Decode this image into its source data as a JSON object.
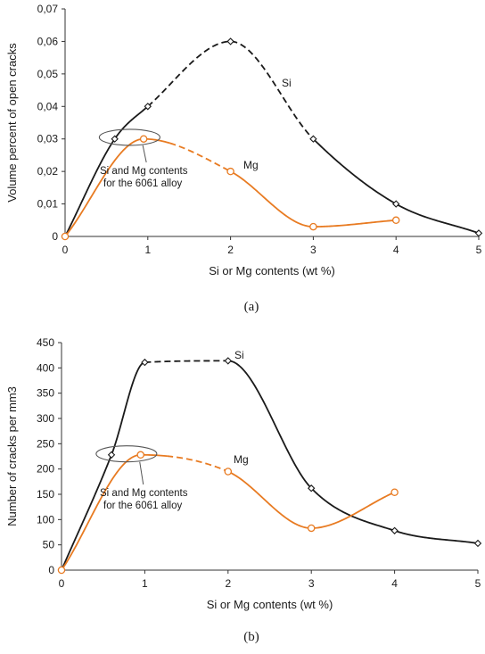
{
  "colors": {
    "si": "#1a1a1a",
    "mg": "#e87b22",
    "axis": "#333333",
    "ellipse": "#555555"
  },
  "chart_data": [
    {
      "type": "line",
      "caption": "(a)",
      "xlabel": "Si or Mg contents (wt %)",
      "ylabel": "Volume percent of open cracks",
      "xlim": [
        0,
        5
      ],
      "ylim": [
        0,
        0.07
      ],
      "x_ticks": [
        "0",
        "1",
        "2",
        "3",
        "4",
        "5"
      ],
      "y_ticks": [
        "0",
        "0,01",
        "0,02",
        "0,03",
        "0,04",
        "0,05",
        "0,06",
        "0,07"
      ],
      "grid": false,
      "series": [
        {
          "name": "Si",
          "marker": "diamond",
          "x": [
            0,
            0.6,
            1,
            2,
            3,
            4,
            5
          ],
          "y": [
            0,
            0.03,
            0.04,
            0.06,
            0.03,
            0.01,
            0.001
          ],
          "dashed_segments": [
            [
              1,
              3
            ]
          ]
        },
        {
          "name": "Mg",
          "marker": "circle",
          "x": [
            0,
            0.95,
            2,
            3,
            4
          ],
          "y": [
            0,
            0.03,
            0.02,
            0.003,
            0.005
          ],
          "dashed_segments": [
            [
              1.25,
              1.95
            ]
          ]
        }
      ],
      "annotation": {
        "line1": "Si and Mg contents",
        "line2": "for the 6061 alloy",
        "ellipse_center": [
          0.78,
          0.0305
        ]
      }
    },
    {
      "type": "line",
      "caption": "(b)",
      "xlabel": "Si or Mg contents (wt %)",
      "ylabel": "Number of cracks per mm3",
      "xlim": [
        0,
        5
      ],
      "ylim": [
        0,
        450
      ],
      "x_ticks": [
        "0",
        "1",
        "2",
        "3",
        "4",
        "5"
      ],
      "y_ticks": [
        "0",
        "50",
        "100",
        "150",
        "200",
        "250",
        "300",
        "350",
        "400",
        "450"
      ],
      "grid": false,
      "series": [
        {
          "name": "Si",
          "marker": "diamond",
          "x": [
            0,
            0.6,
            1,
            2,
            3,
            4,
            5
          ],
          "y": [
            0,
            228,
            411,
            414,
            162,
            78,
            53
          ],
          "dashed_segments": [
            [
              1,
              2
            ]
          ]
        },
        {
          "name": "Mg",
          "marker": "circle",
          "x": [
            0,
            0.95,
            2,
            3,
            4
          ],
          "y": [
            0,
            228,
            195,
            83,
            154
          ],
          "dashed_segments": [
            [
              1.25,
              1.95
            ]
          ]
        }
      ],
      "annotation": {
        "line1": "Si and Mg contents",
        "line2": "for the 6061 alloy",
        "ellipse_center": [
          0.78,
          230
        ]
      }
    }
  ]
}
